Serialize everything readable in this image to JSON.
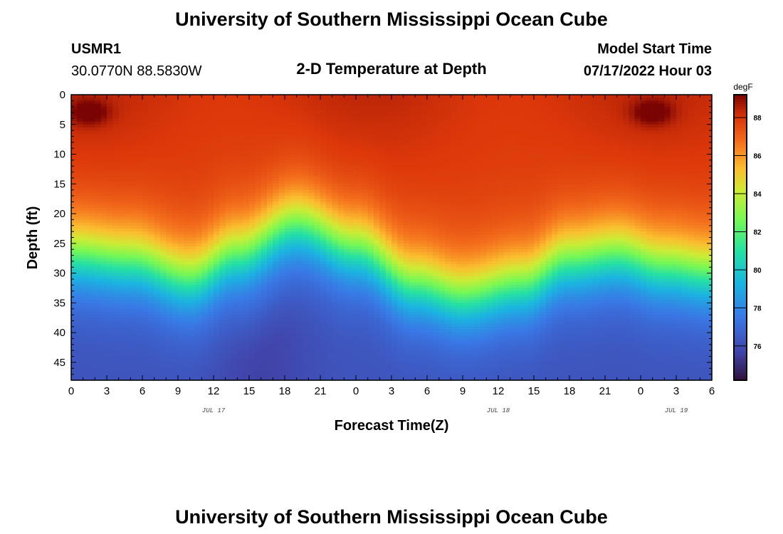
{
  "header": {
    "title": "University of Southern Mississippi Ocean Cube",
    "station_id": "USMR1",
    "coordinates": "30.0770N  88.5830W",
    "plot_title": "2-D Temperature at Depth",
    "model_label": "Model Start Time",
    "model_time": "07/17/2022 Hour 03"
  },
  "footer": {
    "title": "University of Southern Mississippi Ocean Cube"
  },
  "chart_data": {
    "type": "heatmap",
    "title": "2-D Temperature at Depth",
    "xlabel": "Forecast Time(Z)",
    "ylabel": "Depth (ft)",
    "x_range_hours": [
      0,
      54
    ],
    "y_range_ft": [
      0,
      48
    ],
    "x_tick_labels": [
      "0",
      "3",
      "6",
      "9",
      "12",
      "15",
      "18",
      "21",
      "0",
      "3",
      "6",
      "9",
      "12",
      "15",
      "18",
      "21",
      "0",
      "3",
      "6"
    ],
    "y_tick_values": [
      0,
      5,
      10,
      15,
      20,
      25,
      30,
      35,
      40,
      45
    ],
    "y_tick_labels": [
      "0",
      "5",
      "10",
      "15",
      "20",
      "25",
      "30",
      "35",
      "40",
      "45"
    ],
    "date_labels": [
      {
        "label": "JUL 17",
        "hour": 12
      },
      {
        "label": "JUL 18",
        "hour": 36
      },
      {
        "label": "JUL 19",
        "hour": 51
      }
    ],
    "colorbar": {
      "unit": "degF",
      "range": [
        74.2,
        89.2
      ],
      "tick_values": [
        76,
        78,
        80,
        82,
        84,
        86,
        88
      ],
      "tick_labels": [
        "76",
        "78",
        "80",
        "82",
        "84",
        "86",
        "88"
      ]
    },
    "thermocline_depth_ft": [
      {
        "hour": 0,
        "depth": 27
      },
      {
        "hour": 5,
        "depth": 28
      },
      {
        "hour": 10,
        "depth": 31
      },
      {
        "hour": 14,
        "depth": 27
      },
      {
        "hour": 19,
        "depth": 22
      },
      {
        "hour": 24,
        "depth": 26
      },
      {
        "hour": 29,
        "depth": 32
      },
      {
        "hour": 33,
        "depth": 34
      },
      {
        "hour": 38,
        "depth": 32
      },
      {
        "hour": 42,
        "depth": 28
      },
      {
        "hour": 46,
        "depth": 27
      },
      {
        "hour": 50,
        "depth": 29
      },
      {
        "hour": 54,
        "depth": 30
      }
    ],
    "surface_temp_degF": 87.8,
    "bottom_temp_degF": 76.2,
    "warm_spots": [
      {
        "hour": 1.5,
        "depth_ft": 3,
        "temp_degF": 89.2
      },
      {
        "hour": 49.0,
        "depth_ft": 3,
        "temp_degF": 89.2
      }
    ]
  }
}
